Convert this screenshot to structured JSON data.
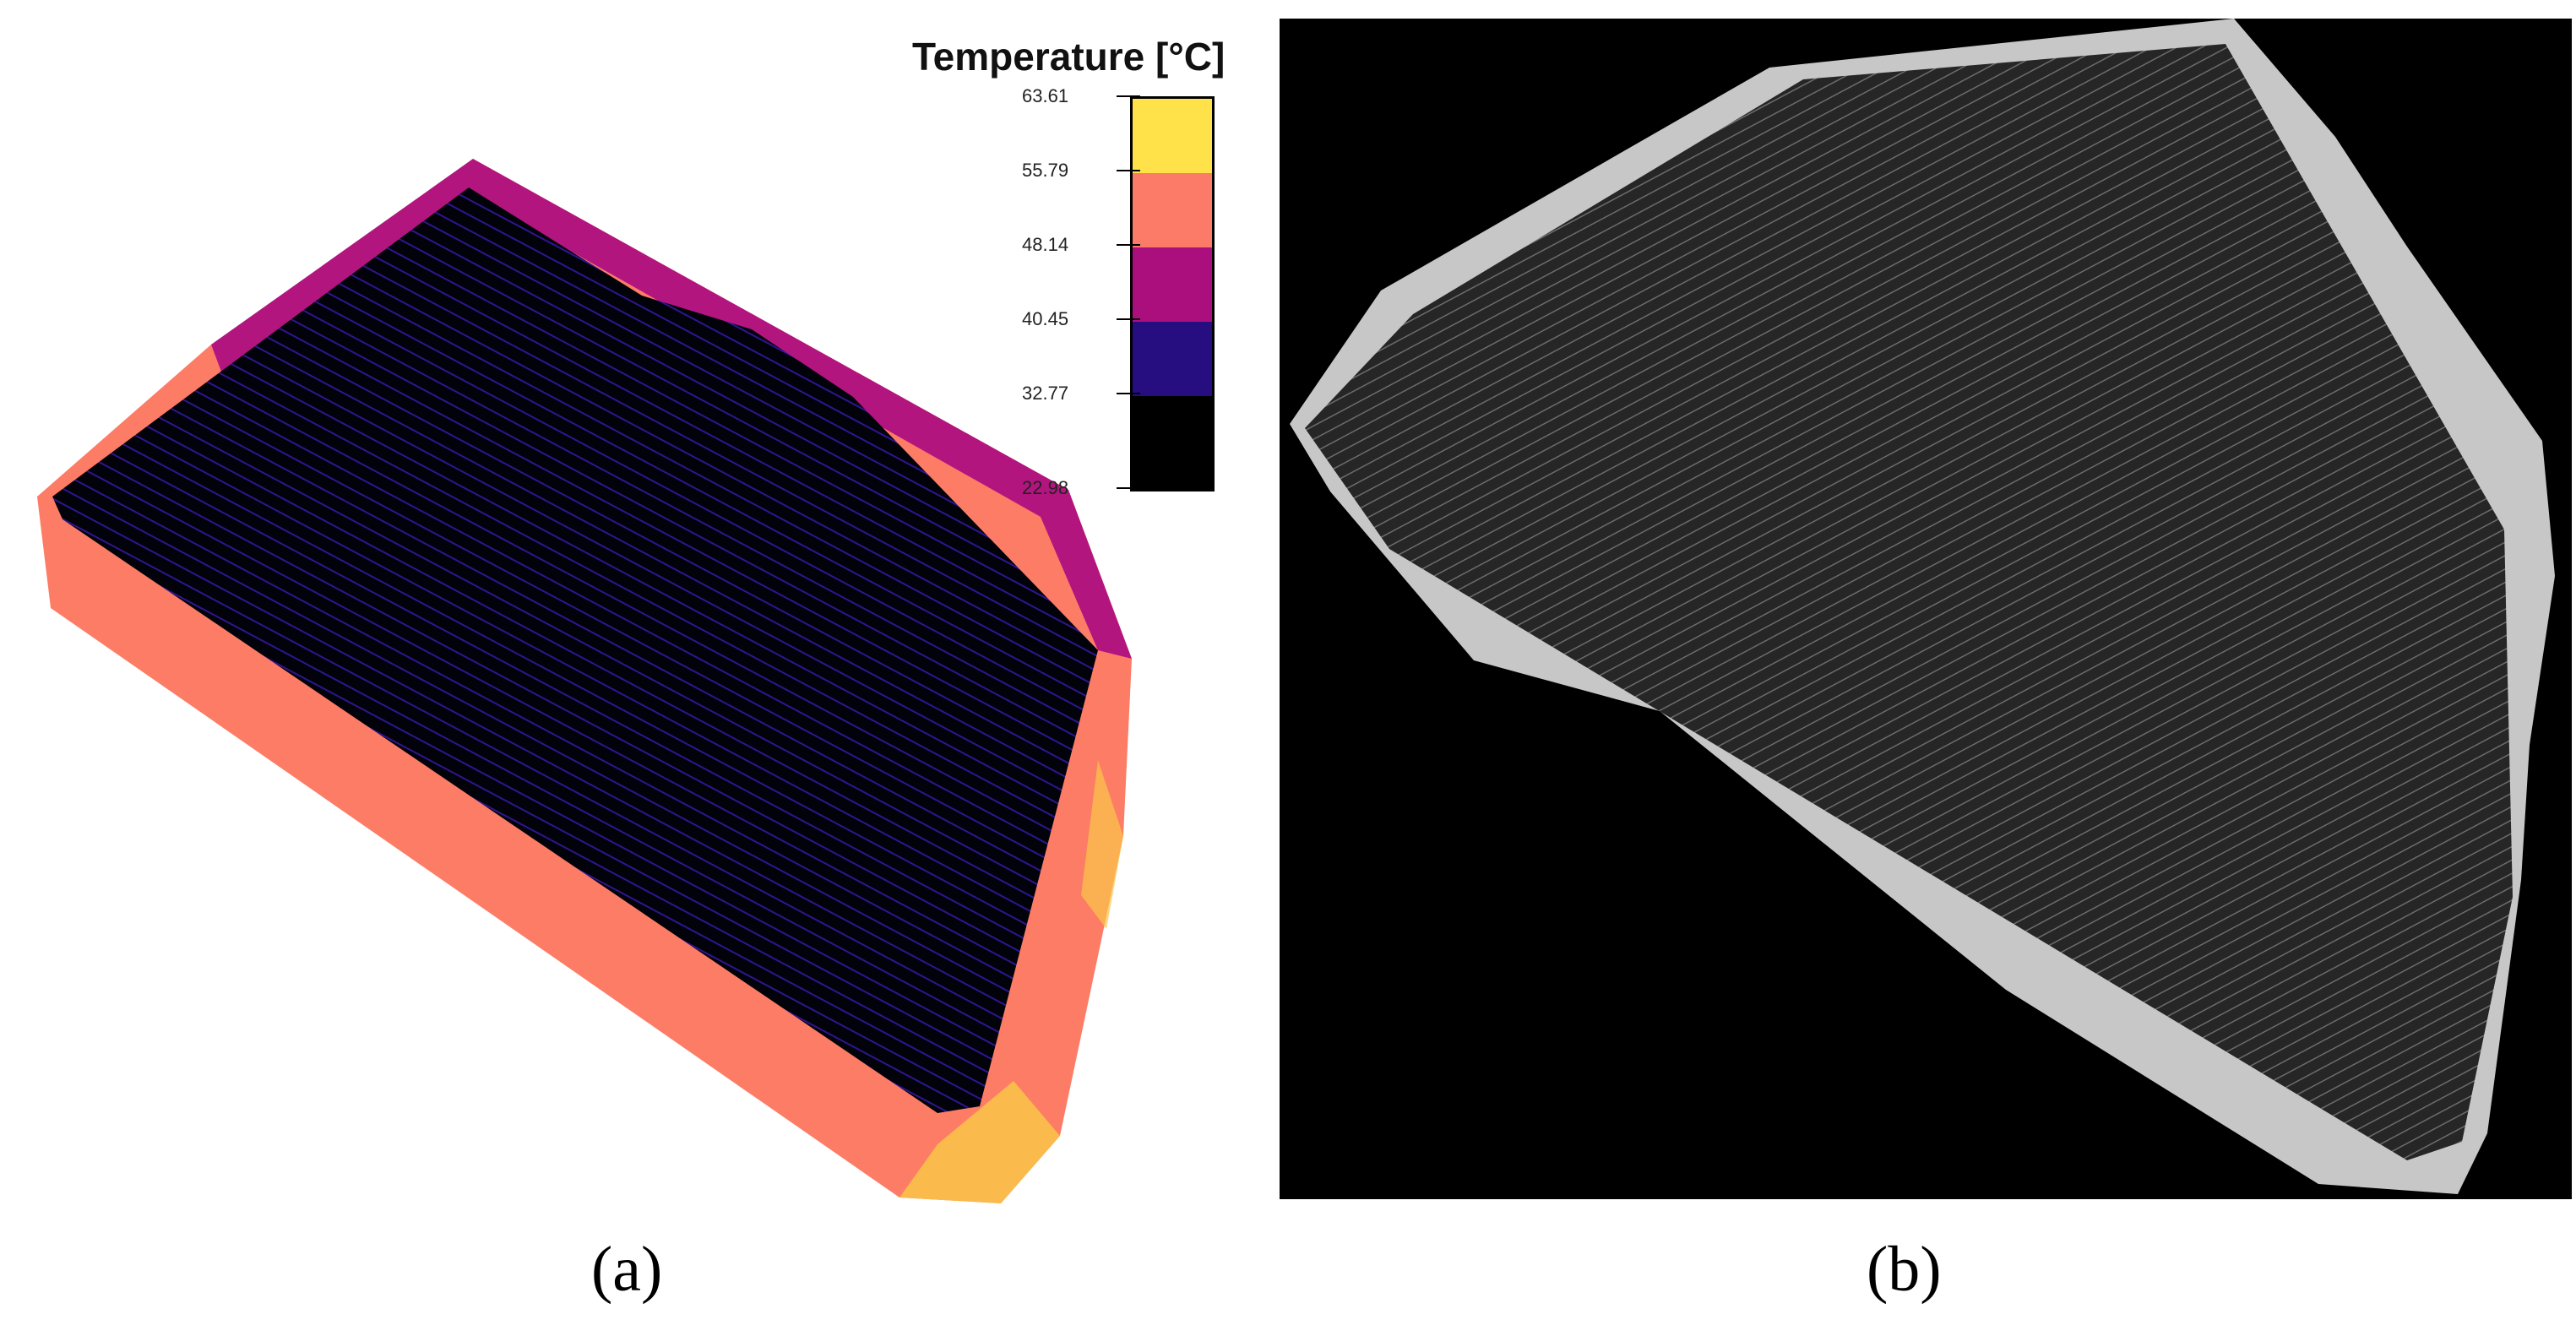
{
  "legend": {
    "title": "Temperature [°C]",
    "ticks": [
      "63.61",
      "55.79",
      "48.14",
      "40.45",
      "32.77",
      "22.98"
    ],
    "colors": [
      "#ffe14a",
      "#fc7a68",
      "#ab0f7e",
      "#260d80",
      "#000000"
    ]
  },
  "captions": {
    "a": "(a)",
    "b": "(b)"
  },
  "colors": {
    "thermal_hot": "#fd7c66",
    "thermal_warm": "#b3157f",
    "thermal_yellow": "#f9c648",
    "thermal_panel_stripe": "#3a1cb0",
    "grayscale_border": "#c7c7c7",
    "grayscale_field": "#2a2a2a",
    "grayscale_background": "#000000"
  }
}
